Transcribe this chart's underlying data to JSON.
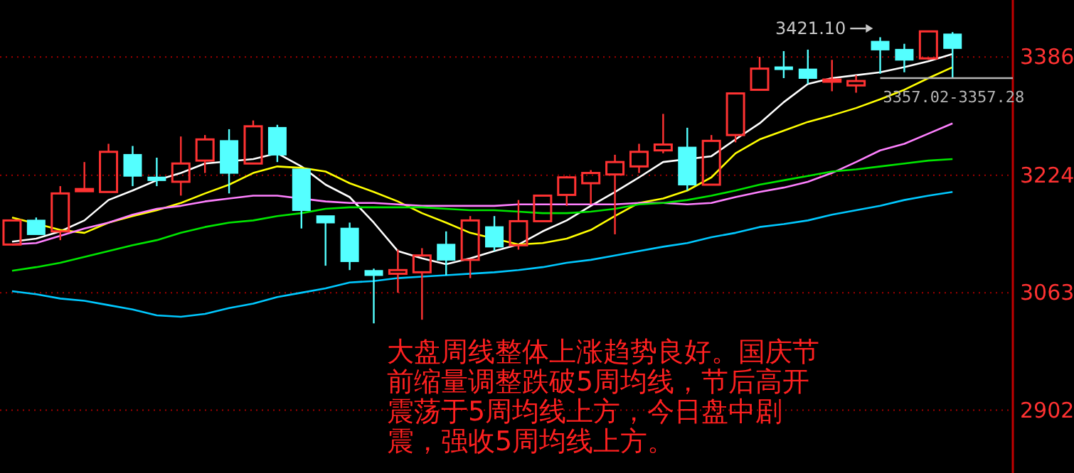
{
  "chart_data": {
    "type": "candlestick",
    "categories": [
      null,
      null,
      null,
      null,
      null,
      null,
      null,
      null,
      null,
      null,
      null,
      null,
      null,
      null,
      null,
      null,
      null,
      null,
      null,
      null,
      null,
      null,
      null,
      null,
      null,
      null,
      null,
      null,
      null,
      null,
      null,
      null,
      null,
      null,
      null,
      null,
      null,
      null,
      null,
      null
    ],
    "ohlc": [
      [
        3129,
        3162,
        3129,
        3162
      ],
      [
        3162,
        3166,
        3143,
        3143
      ],
      [
        3147,
        3209,
        3135,
        3199
      ],
      [
        3203,
        3242,
        3203,
        3205
      ],
      [
        3201,
        3267,
        3201,
        3256
      ],
      [
        3252,
        3264,
        3209,
        3223
      ],
      [
        3221,
        3248,
        3209,
        3217
      ],
      [
        3215,
        3277,
        3196,
        3240
      ],
      [
        3244,
        3279,
        3227,
        3273
      ],
      [
        3271,
        3287,
        3199,
        3227
      ],
      [
        3240,
        3299,
        3240,
        3291
      ],
      [
        3289,
        3293,
        3242,
        3252
      ],
      [
        3232,
        3232,
        3151,
        3176
      ],
      [
        3168,
        3168,
        3100,
        3159
      ],
      [
        3151,
        3159,
        3094,
        3106
      ],
      [
        3093,
        3096,
        3021,
        3087
      ],
      [
        3089,
        3122,
        3063,
        3094
      ],
      [
        3091,
        3124,
        3026,
        3114
      ],
      [
        3129,
        3147,
        3087,
        3108
      ],
      [
        3108,
        3168,
        3083,
        3162
      ],
      [
        3153,
        3168,
        3120,
        3126
      ],
      [
        3128,
        3190,
        3122,
        3161
      ],
      [
        3161,
        3197,
        3161,
        3196
      ],
      [
        3197,
        3223,
        3182,
        3221
      ],
      [
        3213,
        3231,
        3184,
        3227
      ],
      [
        3225,
        3252,
        3143,
        3242
      ],
      [
        3236,
        3267,
        3227,
        3256
      ],
      [
        3258,
        3308,
        3254,
        3266
      ],
      [
        3262,
        3289,
        3203,
        3211
      ],
      [
        3211,
        3279,
        3211,
        3271
      ],
      [
        3279,
        3336,
        3269,
        3336
      ],
      [
        3341,
        3386,
        3341,
        3370
      ],
      [
        3372,
        3394,
        3357,
        3370
      ],
      [
        3369,
        3396,
        3349,
        3357
      ],
      [
        3355,
        3382,
        3339,
        3355
      ],
      [
        3347,
        3361,
        3337,
        3353
      ],
      [
        3407,
        3413,
        3363,
        3396
      ],
      [
        3396,
        3404,
        3365,
        3382
      ],
      [
        3384,
        3421.1,
        3382,
        3421
      ],
      [
        3417,
        3420,
        3357.02,
        3398
      ]
    ],
    "series": [
      {
        "type": "line",
        "color": "#ffffff",
        "values": [
          3133,
          3137,
          3147,
          3162,
          3190,
          3203,
          3217,
          3227,
          3240,
          null,
          3246,
          3254,
          3236,
          3211,
          3194,
          3159,
          3120,
          3110,
          3102,
          3110,
          3120,
          3129,
          3147,
          3162,
          3182,
          3201,
          3221,
          3242,
          null,
          3250,
          3273,
          3295,
          3324,
          3349,
          3357,
          3361,
          3365,
          3372,
          3380,
          3390
        ]
      },
      {
        "type": "line",
        "color": "#ffff00",
        "values": [
          3166,
          null,
          3149,
          3145,
          3159,
          3168,
          3176,
          3186,
          3199,
          3211,
          3227,
          3236,
          3234,
          3229,
          3213,
          3201,
          3188,
          3172,
          3159,
          3145,
          null,
          3129,
          3131,
          3137,
          3149,
          3168,
          3186,
          3192,
          3203,
          3221,
          3254,
          3273,
          3285,
          3297,
          3306,
          3316,
          3328,
          3341,
          3357,
          3372
        ]
      },
      {
        "type": "line",
        "color": "#ff80ff",
        "values": [
          3129,
          3131,
          3141,
          3151,
          3159,
          3170,
          3178,
          3182,
          3188,
          3192,
          3196,
          3196,
          null,
          3188,
          3186,
          3186,
          3184,
          3182,
          3182,
          3182,
          3182,
          3184,
          3184,
          3184,
          3184,
          3184,
          3186,
          3186,
          3184,
          3186,
          3194,
          3201,
          3207,
          3215,
          3227,
          3242,
          3258,
          3267,
          3281,
          3295
        ]
      },
      {
        "type": "line",
        "color": "#00e600",
        "values": [
          3093,
          3098,
          3104,
          3112,
          3120,
          3128,
          3135,
          3145,
          3153,
          3159,
          3162,
          3168,
          3172,
          3178,
          3180,
          3180,
          3180,
          3180,
          3178,
          3176,
          3176,
          3174,
          3172,
          3172,
          3174,
          3178,
          3184,
          3186,
          3190,
          3196,
          3203,
          3211,
          3217,
          3223,
          3229,
          3232,
          3236,
          3240,
          3244,
          3246
        ]
      },
      {
        "type": "line",
        "color": "#00c8ff",
        "values": [
          3065,
          3061,
          3055,
          3052,
          3046,
          3040,
          3032,
          3030,
          3034,
          3042,
          3048,
          3057,
          3063,
          3069,
          3077,
          3079,
          3083,
          3085,
          3087,
          3089,
          3091,
          3094,
          3098,
          3104,
          3108,
          3114,
          3120,
          3126,
          3131,
          3139,
          3145,
          3153,
          3157,
          3162,
          3170,
          3176,
          3182,
          3190,
          3196,
          3201
        ]
      }
    ],
    "ylim": [
      2816,
      3464
    ],
    "yticks": [
      3386,
      3224,
      3063,
      2902
    ],
    "grid": "y",
    "annotations": [
      "3421.10",
      "3357.02-3357.28",
      "大盘周线整体上涨趋势良好。国庆节前缩量调整跌破5周均线，节后高开震荡于5周均线上方，今日盘中剧震，强收5周均线上方。"
    ]
  }
}
